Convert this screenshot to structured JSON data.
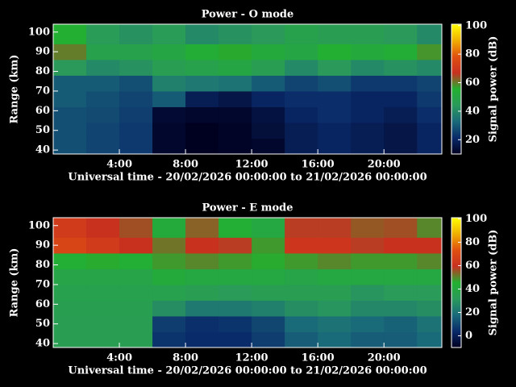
{
  "chart_data": [
    {
      "type": "heatmap",
      "title": "Power - O mode",
      "xlabel": "Universal time - 20/02/2026 00:00:00 to 21/02/2026 00:00:00",
      "ylabel": "Range (km)",
      "colorbar_label": "Signal power (dB)",
      "x": [
        0,
        2,
        4,
        6,
        8,
        10,
        12,
        14,
        16,
        18,
        20,
        22,
        23.5
      ],
      "y": [
        38,
        46,
        54,
        62,
        70,
        78,
        86,
        94,
        104
      ],
      "z": [
        [
          28,
          26,
          24,
          12,
          10,
          11,
          12,
          18,
          20,
          18,
          16,
          20
        ],
        [
          28,
          26,
          24,
          12,
          10,
          11,
          14,
          18,
          20,
          18,
          16,
          20
        ],
        [
          28,
          27,
          25,
          13,
          12,
          12,
          15,
          20,
          22,
          20,
          18,
          22
        ],
        [
          30,
          28,
          26,
          30,
          18,
          16,
          20,
          22,
          22,
          20,
          20,
          24
        ],
        [
          30,
          30,
          28,
          38,
          36,
          35,
          30,
          26,
          28,
          24,
          24,
          26
        ],
        [
          44,
          40,
          42,
          46,
          48,
          50,
          46,
          40,
          44,
          40,
          42,
          40
        ],
        [
          60,
          48,
          48,
          50,
          54,
          56,
          52,
          50,
          55,
          52,
          54,
          58
        ],
        [
          55,
          45,
          42,
          45,
          40,
          42,
          44,
          48,
          46,
          46,
          44,
          40
        ]
      ],
      "xlim": [
        0,
        23.5
      ],
      "ylim": [
        38,
        104
      ],
      "xticks": [
        {
          "value": 4,
          "label": "4:00"
        },
        {
          "value": 8,
          "label": "8:00"
        },
        {
          "value": 12,
          "label": "12:00"
        },
        {
          "value": 16,
          "label": "16:00"
        },
        {
          "value": 20,
          "label": "20:00"
        }
      ],
      "yticks": [
        40,
        50,
        60,
        70,
        80,
        90,
        100
      ],
      "clim": [
        10,
        101
      ],
      "cticks": [
        20,
        40,
        60,
        80,
        100
      ],
      "colormap": [
        "#000020",
        "#0a2a6a",
        "#1a6a7a",
        "#2a9a5a",
        "#22b030",
        "#c83020",
        "#e05010",
        "#f0b000",
        "#ffff00"
      ]
    },
    {
      "type": "heatmap",
      "title": "Power - E mode",
      "xlabel": "Universal time - 20/02/2026 00:00:00 to 21/02/2026 00:00:00",
      "ylabel": "Range (km)",
      "colorbar_label": "Signal power (dB)",
      "x": [
        0,
        2,
        4,
        6,
        8,
        10,
        12,
        14,
        16,
        18,
        20,
        22,
        23.5
      ],
      "y": [
        38,
        46,
        54,
        62,
        70,
        78,
        86,
        94,
        104
      ],
      "z": [
        [
          34,
          34,
          34,
          6,
          4,
          4,
          8,
          15,
          18,
          15,
          15,
          18
        ],
        [
          34,
          34,
          34,
          8,
          5,
          6,
          10,
          18,
          20,
          18,
          16,
          20
        ],
        [
          35,
          35,
          35,
          28,
          22,
          22,
          24,
          28,
          30,
          26,
          26,
          28
        ],
        [
          36,
          36,
          36,
          36,
          34,
          32,
          34,
          34,
          34,
          30,
          32,
          32
        ],
        [
          38,
          38,
          38,
          42,
          40,
          40,
          40,
          38,
          40,
          40,
          40,
          40
        ],
        [
          44,
          46,
          44,
          48,
          50,
          48,
          46,
          48,
          50,
          48,
          48,
          50
        ],
        [
          68,
          64,
          60,
          52,
          60,
          58,
          48,
          62,
          62,
          58,
          60,
          60
        ],
        [
          64,
          60,
          56,
          42,
          54,
          44,
          40,
          58,
          58,
          55,
          56,
          50
        ]
      ],
      "xlim": [
        0,
        23.5
      ],
      "ylim": [
        38,
        104
      ],
      "xticks": [
        {
          "value": 4,
          "label": "4:00"
        },
        {
          "value": 8,
          "label": "8:00"
        },
        {
          "value": 12,
          "label": "12:00"
        },
        {
          "value": 16,
          "label": "16:00"
        },
        {
          "value": 20,
          "label": "20:00"
        }
      ],
      "yticks": [
        40,
        50,
        60,
        70,
        80,
        90,
        100
      ],
      "clim": [
        -10,
        101
      ],
      "cticks": [
        0,
        20,
        40,
        60,
        80,
        100
      ],
      "colormap": [
        "#000020",
        "#0a2a6a",
        "#1a6a7a",
        "#2a9a5a",
        "#22b030",
        "#c83020",
        "#e05010",
        "#f0b000",
        "#ffff00"
      ]
    }
  ]
}
